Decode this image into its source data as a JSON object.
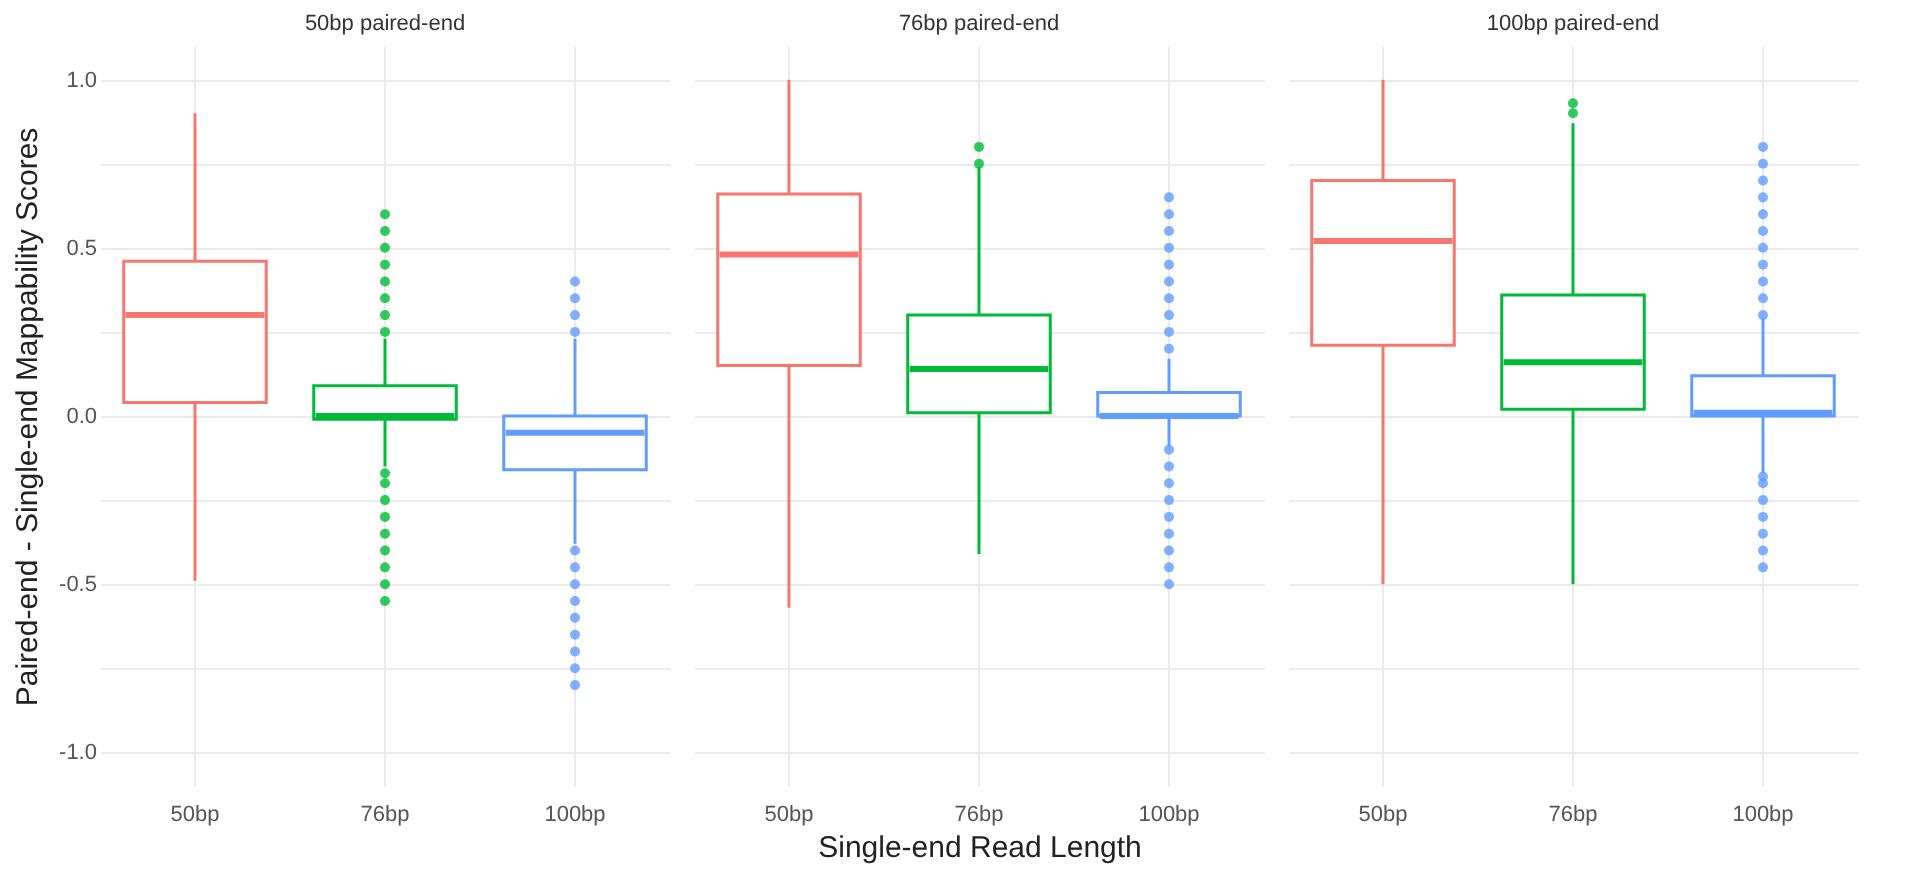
{
  "chart_data": [
    {
      "type": "box",
      "title": "50bp paired-end",
      "ylabel": "Paired-end - Single-end Mappability Scores",
      "categories": [
        "50bp",
        "76bp",
        "100bp"
      ],
      "colors": [
        "#f8766d",
        "#00ba38",
        "#619cff"
      ],
      "boxes": [
        {
          "low": -0.49,
          "q1": 0.04,
          "median": 0.3,
          "q3": 0.46,
          "high": 0.9
        },
        {
          "low": -0.15,
          "q1": -0.01,
          "median": 0.0,
          "q3": 0.09,
          "high": 0.23,
          "outliers": [
            0.25,
            0.3,
            0.35,
            0.4,
            0.45,
            0.5,
            0.55,
            0.6,
            -0.17,
            -0.2,
            -0.25,
            -0.3,
            -0.35,
            -0.4,
            -0.45,
            -0.5,
            -0.55
          ]
        },
        {
          "low": -0.38,
          "q1": -0.16,
          "median": -0.05,
          "q3": 0.0,
          "high": 0.23,
          "outliers": [
            0.25,
            0.3,
            0.35,
            0.4,
            -0.4,
            -0.45,
            -0.5,
            -0.55,
            -0.6,
            -0.65,
            -0.7,
            -0.75,
            -0.8
          ]
        }
      ],
      "ylim": [
        -1.1,
        1.1
      ],
      "yticks": [
        {
          "value": -1,
          "label": "-1.0"
        },
        {
          "value": -0.75,
          "label": null
        },
        {
          "value": -0.5,
          "label": "-0.5"
        },
        {
          "value": -0.25,
          "label": null
        },
        {
          "value": 0,
          "label": "0.0"
        },
        {
          "value": 0.25,
          "label": null
        },
        {
          "value": 0.5,
          "label": "0.5"
        },
        {
          "value": 0.75,
          "label": null
        },
        {
          "value": 1,
          "label": "1.0"
        }
      ],
      "grid": true
    },
    {
      "type": "box",
      "title": "76bp paired-end",
      "xlabel": "Single-end Read Length",
      "categories": [
        "50bp",
        "76bp",
        "100bp"
      ],
      "colors": [
        "#f8766d",
        "#00ba38",
        "#619cff"
      ],
      "boxes": [
        {
          "low": -0.57,
          "q1": 0.15,
          "median": 0.48,
          "q3": 0.66,
          "high": 1.0
        },
        {
          "low": -0.41,
          "q1": 0.01,
          "median": 0.14,
          "q3": 0.3,
          "high": 0.74,
          "outliers": [
            0.75,
            0.8
          ]
        },
        {
          "low": -0.09,
          "q1": 0.0,
          "median": 0.0,
          "q3": 0.07,
          "high": 0.17,
          "outliers": [
            0.2,
            0.25,
            0.3,
            0.35,
            0.4,
            0.45,
            0.5,
            0.55,
            0.6,
            0.65,
            -0.1,
            -0.15,
            -0.2,
            -0.25,
            -0.3,
            -0.35,
            -0.4,
            -0.45,
            -0.5
          ]
        }
      ],
      "ylim": [
        -1.1,
        1.1
      ],
      "yticks": [
        -1,
        -0.75,
        -0.5,
        -0.25,
        0,
        0.25,
        0.5,
        0.75,
        1
      ],
      "grid": true,
      "tick_labels": "x"
    },
    {
      "type": "box",
      "title": "100bp paired-end",
      "categories": [
        "50bp",
        "76bp",
        "100bp"
      ],
      "colors": [
        "#f8766d",
        "#00ba38",
        "#619cff"
      ],
      "boxes": [
        {
          "low": -0.5,
          "q1": 0.21,
          "median": 0.52,
          "q3": 0.7,
          "high": 1.0
        },
        {
          "low": -0.5,
          "q1": 0.02,
          "median": 0.16,
          "q3": 0.36,
          "high": 0.87,
          "outliers": [
            0.9,
            0.93
          ]
        },
        {
          "low": -0.17,
          "q1": 0.0,
          "median": 0.01,
          "q3": 0.12,
          "high": 0.29,
          "outliers": [
            0.3,
            0.35,
            0.4,
            0.45,
            0.5,
            0.55,
            0.6,
            0.65,
            0.7,
            0.75,
            0.8,
            -0.18,
            -0.2,
            -0.25,
            -0.3,
            -0.35,
            -0.4,
            -0.45
          ]
        }
      ],
      "ylim": [
        -1.1,
        1.1
      ],
      "yticks": [
        -1,
        -0.75,
        -0.5,
        -0.25,
        0,
        0.25,
        0.5,
        0.75,
        1
      ],
      "grid": true,
      "tick_labels": "x"
    }
  ]
}
